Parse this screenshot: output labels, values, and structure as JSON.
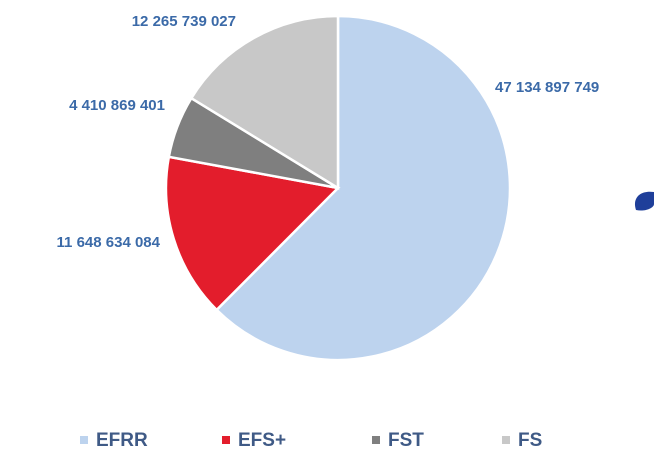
{
  "chart_data": {
    "type": "pie",
    "categories": [
      "EFRR",
      "EFS+",
      "FST",
      "FS"
    ],
    "values": [
      47134897749,
      11648634084,
      4410869401,
      12265739027
    ],
    "value_labels": [
      "47 134 897 749",
      "11 648 634 084",
      "4 410 869 401",
      "12 265 739 027"
    ],
    "colors": [
      "#bdd3ee",
      "#e31d2c",
      "#7f7f7f",
      "#c8c8c8"
    ],
    "legend": "bottom"
  }
}
